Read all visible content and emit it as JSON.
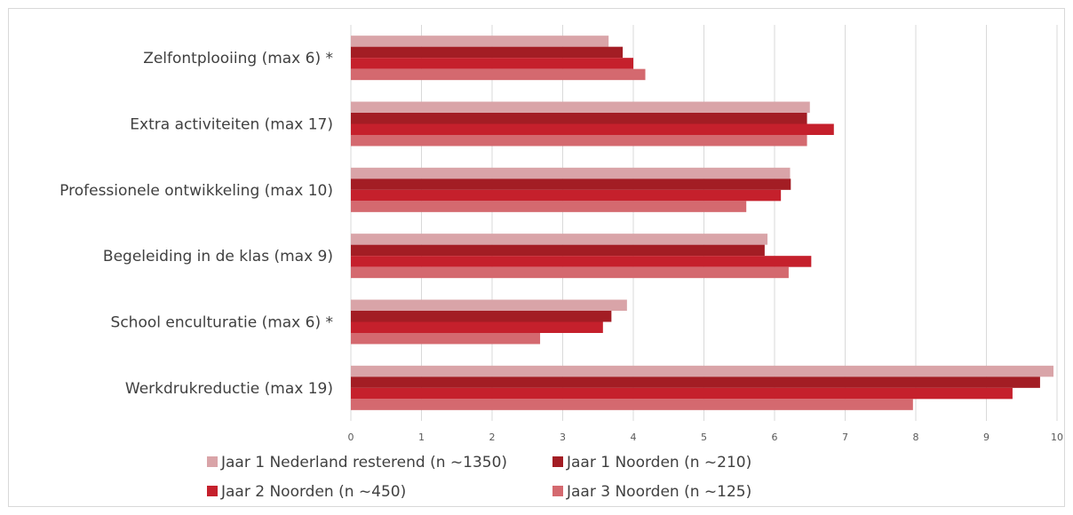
{
  "chart_data": {
    "type": "bar",
    "orientation": "horizontal",
    "categories": [
      "Zelfontplooiing (max 6) *",
      "Extra activiteiten (max 17)",
      "Professionele ontwikkeling  (max 10)",
      "Begeleiding in de klas (max 9)",
      "School enculturatie (max 6) *",
      "Werkdrukreductie (max 19)"
    ],
    "series": [
      {
        "name": "Jaar 1 Nederland resterend  (n ~1350)",
        "color": "#d9a4a8",
        "values": [
          3.65,
          6.5,
          6.22,
          5.9,
          3.91,
          9.95
        ]
      },
      {
        "name": "Jaar 1 Noorden (n ~210)",
        "color": "#a31d24",
        "values": [
          3.85,
          6.46,
          6.23,
          5.86,
          3.69,
          9.76
        ]
      },
      {
        "name": "Jaar 2 Noorden  (n ~450)",
        "color": "#c5202c",
        "values": [
          4.0,
          6.84,
          6.09,
          6.52,
          3.57,
          9.37
        ]
      },
      {
        "name": "Jaar 3 Noorden  (n ~125)",
        "color": "#d4696f",
        "values": [
          4.17,
          6.46,
          5.6,
          6.2,
          2.68,
          7.96
        ]
      }
    ],
    "x_ticks": [
      "0",
      "1",
      "2",
      "3",
      "4",
      "5",
      "6",
      "7",
      "8",
      "9",
      "10"
    ],
    "xlim": [
      0,
      10
    ],
    "grid": "vertical",
    "legend_position": "bottom"
  }
}
